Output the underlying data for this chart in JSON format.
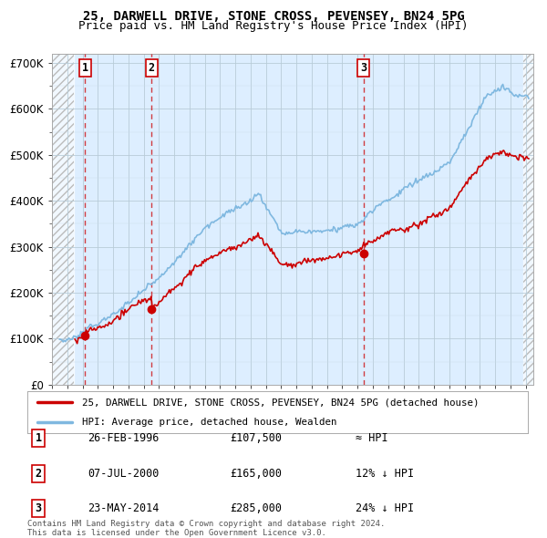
{
  "title": "25, DARWELL DRIVE, STONE CROSS, PEVENSEY, BN24 5PG",
  "subtitle": "Price paid vs. HM Land Registry's House Price Index (HPI)",
  "ylim": [
    0,
    720000
  ],
  "yticks": [
    0,
    100000,
    200000,
    300000,
    400000,
    500000,
    600000,
    700000
  ],
  "ytick_labels": [
    "£0",
    "£100K",
    "£200K",
    "£300K",
    "£400K",
    "£500K",
    "£600K",
    "£700K"
  ],
  "xlim_start": 1994.0,
  "xlim_end": 2025.5,
  "hpi_color": "#7fb8e0",
  "price_color": "#cc0000",
  "background_color": "#ddeeff",
  "hatch_color": "#c8c8c8",
  "hatch_region_end": 1995.42,
  "hatch_region_start2": 2024.83,
  "sale_dates": [
    1996.15,
    2000.52,
    2014.39
  ],
  "sale_prices": [
    107500,
    165000,
    285000
  ],
  "sale_labels": [
    "1",
    "2",
    "3"
  ],
  "legend_price_label": "25, DARWELL DRIVE, STONE CROSS, PEVENSEY, BN24 5PG (detached house)",
  "legend_hpi_label": "HPI: Average price, detached house, Wealden",
  "table_rows": [
    [
      "1",
      "26-FEB-1996",
      "£107,500",
      "≈ HPI"
    ],
    [
      "2",
      "07-JUL-2000",
      "£165,000",
      "12% ↓ HPI"
    ],
    [
      "3",
      "23-MAY-2014",
      "£285,000",
      "24% ↓ HPI"
    ]
  ],
  "footnote": "Contains HM Land Registry data © Crown copyright and database right 2024.\nThis data is licensed under the Open Government Licence v3.0.",
  "title_fontsize": 10,
  "subtitle_fontsize": 9
}
